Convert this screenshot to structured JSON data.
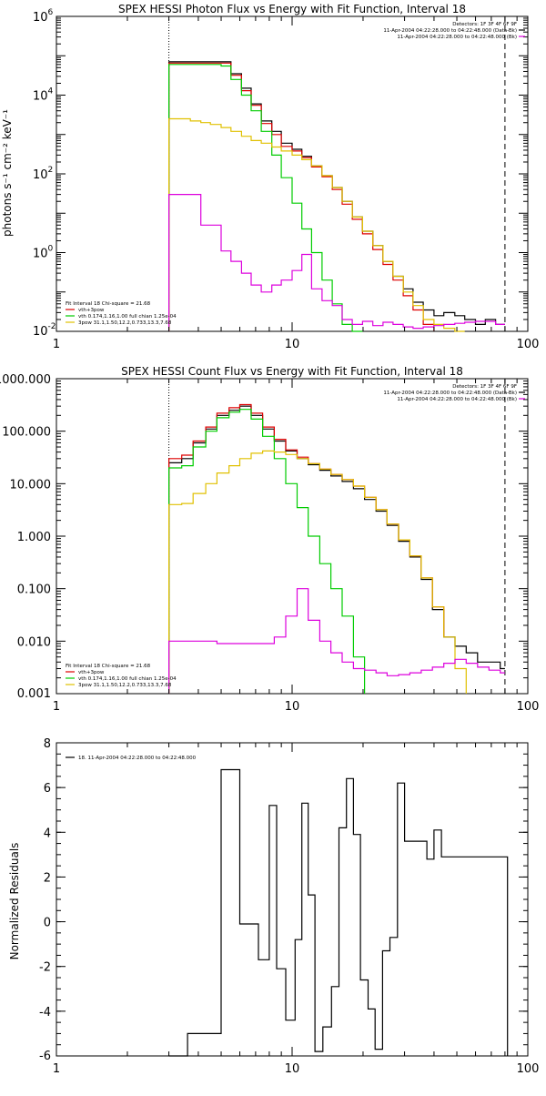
{
  "chart_data": [
    {
      "type": "line",
      "title": "SPEX HESSI Photon Flux vs Energy with Fit Function, Interval 18",
      "xlabel": "",
      "ylabel": "photons s⁻¹ cm⁻² keV⁻¹",
      "xscale": "log",
      "yscale": "log",
      "xlim": [
        1,
        100
      ],
      "ylim": [
        0.01,
        1000000
      ],
      "x_ticks": [
        {
          "v": 1,
          "t": "1"
        },
        {
          "v": 10,
          "t": "10"
        },
        {
          "v": 100,
          "t": "100"
        }
      ],
      "y_ticks": [
        {
          "v": 0.01,
          "base": "10",
          "exp": "-2"
        },
        {
          "v": 1,
          "base": "10",
          "exp": "0"
        },
        {
          "v": 100,
          "base": "10",
          "exp": "2"
        },
        {
          "v": 10000,
          "base": "10",
          "exp": "4"
        },
        {
          "v": 1000000,
          "base": "10",
          "exp": "6"
        }
      ],
      "dotted_x": 3,
      "dashed_x": 80,
      "legend_right": [
        {
          "text": "Detectors: 1F 3F 4F 6F 9F",
          "color": ""
        },
        {
          "text": "11-Apr-2004 04:22:28.000 to 04:22:48.000 (Data-Bk)",
          "color": "#000000"
        },
        {
          "text": "11-Apr-2004 04:22:28.000 to 04:22:48.000 (Bk)",
          "color": "#dd00dd"
        }
      ],
      "legend_left": [
        {
          "text": "Fit Interval 18   Chi-square = 21.68",
          "color": ""
        },
        {
          "text": "vth+3pow",
          "color": "#dd0000"
        },
        {
          "text": "vth 0.174,1.16,1.00  full chian 1.25e-04",
          "color": "#00cc00"
        },
        {
          "text": "3pow 31.1,1.50,12.2,0.733,13.3,7.68",
          "color": "#e0c000"
        }
      ],
      "series": [
        {
          "color": "#000000",
          "x": [
            3,
            3.3,
            3.7,
            4.1,
            4.5,
            5.0,
            5.5,
            6.1,
            6.7,
            7.4,
            8.2,
            9.0,
            10.0,
            11.0,
            12.1,
            13.4,
            14.8,
            16.3,
            18.0,
            19.9,
            22.0,
            24.3,
            26.8,
            29.6,
            32.6,
            36.0,
            40.0,
            44.0,
            49.0,
            54.0,
            60.0,
            66.0,
            73.0,
            80.0
          ],
          "y": [
            70000,
            70000,
            70000,
            70000,
            70000,
            70000,
            35000,
            15000,
            6000,
            2200,
            1200,
            600,
            420,
            280,
            160,
            90,
            45,
            20,
            8,
            3.5,
            1.5,
            0.6,
            0.25,
            0.12,
            0.055,
            0.035,
            0.025,
            0.03,
            0.025,
            0.02,
            0.015,
            0.02,
            0.015,
            0.015
          ]
        },
        {
          "color": "#dd0000",
          "x": [
            3,
            3.3,
            3.7,
            4.1,
            4.5,
            5.0,
            5.5,
            6.1,
            6.7,
            7.4,
            8.2,
            9.0,
            10.0,
            11.0,
            12.1,
            13.4,
            14.8,
            16.3,
            18.0,
            19.9,
            22.0,
            24.3,
            26.8,
            29.6,
            32.6,
            36.0,
            40.0
          ],
          "y": [
            65000,
            65000,
            65000,
            65000,
            65000,
            65000,
            32000,
            13000,
            5500,
            1900,
            1000,
            500,
            380,
            260,
            150,
            85,
            40,
            17,
            7,
            3,
            1.2,
            0.5,
            0.2,
            0.08,
            0.035,
            0.015,
            0.01
          ]
        },
        {
          "color": "#00cc00",
          "x": [
            3,
            3.3,
            3.7,
            4.1,
            4.5,
            5.0,
            5.5,
            6.1,
            6.7,
            7.4,
            8.2,
            9.0,
            10.0,
            11.0,
            12.1,
            13.4,
            14.8,
            16.3,
            18.0,
            19.9
          ],
          "y": [
            60000,
            60000,
            60000,
            60000,
            60000,
            55000,
            25000,
            10000,
            4000,
            1200,
            300,
            80,
            18,
            4,
            1,
            0.2,
            0.05,
            0.015,
            0.01,
            0.01
          ]
        },
        {
          "color": "#e0c000",
          "x": [
            3,
            3.3,
            3.7,
            4.1,
            4.5,
            5.0,
            5.5,
            6.1,
            6.7,
            7.4,
            8.2,
            9.0,
            10.0,
            11.0,
            12.1,
            13.4,
            14.8,
            16.3,
            18.0,
            19.9,
            22.0,
            24.3,
            26.8,
            29.6,
            32.6,
            36.0,
            40.0,
            44.0,
            49.0,
            54.0
          ],
          "y": [
            2500,
            2500,
            2200,
            2000,
            1800,
            1500,
            1200,
            900,
            700,
            600,
            480,
            380,
            300,
            230,
            160,
            90,
            45,
            20,
            8,
            3.5,
            1.5,
            0.6,
            0.25,
            0.1,
            0.045,
            0.02,
            0.015,
            0.012,
            0.01,
            0.01
          ]
        },
        {
          "color": "#dd00dd",
          "x": [
            3,
            3.3,
            3.7,
            4.1,
            4.5,
            5.0,
            5.5,
            6.1,
            6.7,
            7.4,
            8.2,
            9.0,
            10.0,
            11.0,
            12.1,
            13.4,
            14.8,
            16.3,
            18.0,
            19.9,
            22.0,
            24.3,
            26.8,
            29.6,
            32.6,
            36.0,
            40.0,
            44.0,
            49.0,
            54.0,
            60.0,
            66.0,
            73.0,
            80.0
          ],
          "y": [
            30,
            30,
            30,
            5,
            5,
            1.1,
            0.6,
            0.3,
            0.15,
            0.1,
            0.15,
            0.2,
            0.35,
            0.9,
            0.12,
            0.06,
            0.045,
            0.02,
            0.015,
            0.018,
            0.014,
            0.017,
            0.015,
            0.013,
            0.012,
            0.013,
            0.014,
            0.015,
            0.016,
            0.017,
            0.018,
            0.018,
            0.015,
            0.015
          ]
        }
      ]
    },
    {
      "type": "line",
      "title": "SPEX HESSI Count Flux vs Energy with Fit Function, Interval 18",
      "xlabel": "",
      "ylabel": "",
      "xscale": "log",
      "yscale": "log",
      "xlim": [
        1,
        100
      ],
      "ylim": [
        0.001,
        1000
      ],
      "x_ticks": [
        {
          "v": 1,
          "t": "1"
        },
        {
          "v": 10,
          "t": "10"
        },
        {
          "v": 100,
          "t": "100"
        }
      ],
      "y_ticks": [
        {
          "v": 0.001,
          "t": "0.001"
        },
        {
          "v": 0.01,
          "t": "0.010"
        },
        {
          "v": 0.1,
          "t": "0.100"
        },
        {
          "v": 1,
          "t": "1.000"
        },
        {
          "v": 10,
          "t": "10.000"
        },
        {
          "v": 100,
          "t": "100.000"
        },
        {
          "v": 1000,
          "t": "1000.000"
        }
      ],
      "dotted_x": 3,
      "dashed_x": 80,
      "legend_right": [
        {
          "text": "Detectors: 1F 3F 4F 6F 9F",
          "color": ""
        },
        {
          "text": "11-Apr-2004 04:22:28.000 to 04:22:48.000 (Data-Bk)",
          "color": "#000000"
        },
        {
          "text": "11-Apr-2004 04:22:28.000 to 04:22:48.000 (Bk)",
          "color": "#dd00dd"
        }
      ],
      "legend_left": [
        {
          "text": "Fit Interval 18   Chi-square = 21.68",
          "color": ""
        },
        {
          "text": "vth+3pow",
          "color": "#dd0000"
        },
        {
          "text": "vth 0.174,1.16,1.00  full chian 1.25e-04",
          "color": "#00cc00"
        },
        {
          "text": "3pow 31.1,1.50,12.2,0.733,13.3,7.68",
          "color": "#e0c000"
        }
      ],
      "series": [
        {
          "color": "#000000",
          "x": [
            3,
            3.4,
            3.8,
            4.3,
            4.8,
            5.4,
            6.0,
            6.7,
            7.5,
            8.4,
            9.4,
            10.5,
            11.7,
            13.1,
            14.6,
            16.3,
            18.2,
            20.3,
            22.7,
            25.3,
            28.3,
            31.6,
            35.3,
            39.4,
            44.0,
            49.1,
            54.8,
            61.2,
            68.4,
            76.4,
            80.0
          ],
          "y": [
            25,
            30,
            60,
            110,
            200,
            250,
            300,
            200,
            110,
            65,
            42,
            30,
            23,
            18,
            14,
            11,
            8,
            5,
            3,
            1.6,
            0.8,
            0.4,
            0.15,
            0.04,
            0.012,
            0.008,
            0.006,
            0.004,
            0.004,
            0.003,
            0.003
          ]
        },
        {
          "color": "#dd0000",
          "x": [
            3,
            3.4,
            3.8,
            4.3,
            4.8,
            5.4,
            6.0,
            6.7,
            7.5,
            8.4,
            9.4,
            10.5,
            11.7,
            13.1,
            14.6,
            16.3,
            18.2,
            20.3,
            22.7,
            25.3,
            28.3,
            31.6,
            35.3,
            39.4,
            44.0
          ],
          "y": [
            30,
            35,
            65,
            120,
            220,
            280,
            320,
            220,
            120,
            70,
            44,
            32,
            24,
            19,
            15,
            12,
            9,
            5.5,
            3.2,
            1.7,
            0.85,
            0.42,
            0.16,
            0.045,
            0.012
          ]
        },
        {
          "color": "#00cc00",
          "x": [
            3,
            3.4,
            3.8,
            4.3,
            4.8,
            5.4,
            6.0,
            6.7,
            7.5,
            8.4,
            9.4,
            10.5,
            11.7,
            13.1,
            14.6,
            16.3,
            18.2,
            20.3
          ],
          "y": [
            20,
            22,
            50,
            100,
            180,
            230,
            260,
            170,
            80,
            30,
            10,
            3.5,
            1,
            0.3,
            0.1,
            0.03,
            0.005,
            0.001
          ]
        },
        {
          "color": "#e0c000",
          "x": [
            3,
            3.4,
            3.8,
            4.3,
            4.8,
            5.4,
            6.0,
            6.7,
            7.5,
            8.4,
            9.4,
            10.5,
            11.7,
            13.1,
            14.6,
            16.3,
            18.2,
            20.3,
            22.7,
            25.3,
            28.3,
            31.6,
            35.3,
            39.4,
            44.0,
            49.1,
            54.8
          ],
          "y": [
            4,
            4.2,
            6.5,
            10,
            16,
            22,
            30,
            38,
            42,
            40,
            36,
            30,
            24,
            19,
            15,
            12,
            9,
            5.5,
            3.2,
            1.7,
            0.85,
            0.42,
            0.16,
            0.045,
            0.012,
            0.003,
            0.001
          ]
        },
        {
          "color": "#dd00dd",
          "x": [
            3,
            3.4,
            3.8,
            4.3,
            4.8,
            5.4,
            6.0,
            6.7,
            7.5,
            8.4,
            9.4,
            10.5,
            11.7,
            13.1,
            14.6,
            16.3,
            18.2,
            20.3,
            22.7,
            25.3,
            28.3,
            31.6,
            35.3,
            39.4,
            44.0,
            49.1,
            54.8,
            61.2,
            68.4,
            76.4,
            80.0
          ],
          "y": [
            0.01,
            0.01,
            0.01,
            0.01,
            0.009,
            0.009,
            0.009,
            0.009,
            0.009,
            0.012,
            0.03,
            0.1,
            0.025,
            0.01,
            0.006,
            0.004,
            0.003,
            0.0028,
            0.0025,
            0.0022,
            0.0023,
            0.0025,
            0.0028,
            0.0032,
            0.0038,
            0.0045,
            0.0038,
            0.0032,
            0.0028,
            0.0025,
            0.0025
          ]
        }
      ]
    },
    {
      "type": "line",
      "title": "",
      "xlabel": "",
      "ylabel": "Normalized Residuals",
      "xscale": "log",
      "yscale": "linear",
      "xlim": [
        1,
        100
      ],
      "ylim": [
        -6,
        8
      ],
      "x_ticks": [
        {
          "v": 1,
          "t": "1"
        },
        {
          "v": 10,
          "t": "10"
        },
        {
          "v": 100,
          "t": "100"
        }
      ],
      "y_ticks": [
        {
          "v": -6,
          "t": "-6"
        },
        {
          "v": -4,
          "t": "-4"
        },
        {
          "v": -2,
          "t": "-2"
        },
        {
          "v": 0,
          "t": "0"
        },
        {
          "v": 2,
          "t": "2"
        },
        {
          "v": 4,
          "t": "4"
        },
        {
          "v": 6,
          "t": "6"
        },
        {
          "v": 8,
          "t": "8"
        }
      ],
      "legend_left": [
        {
          "text": "18. 11-Apr-2004 04:22:28.000 to 04:22:48.000",
          "color": "#000000"
        }
      ],
      "series": [
        {
          "color": "#000000",
          "x": [
            3.0,
            3.6,
            4.3,
            5.0,
            5.5,
            6.0,
            6.7,
            7.2,
            8.0,
            8.6,
            9.4,
            10.3,
            11.0,
            11.7,
            12.5,
            13.5,
            14.7,
            15.8,
            17.0,
            18.2,
            19.5,
            21.0,
            22.5,
            24.2,
            26.0,
            28.0,
            30.0,
            32.3,
            34.6,
            37.3,
            40.0,
            43.0,
            46.3,
            50.0,
            53.7,
            57.7,
            62.0,
            66.7,
            71.7,
            77.0,
            82.0
          ],
          "y": [
            -6,
            -5,
            -5,
            6.8,
            6.8,
            -0.1,
            -0.1,
            -1.7,
            5.2,
            -2.1,
            -4.4,
            -0.8,
            5.3,
            1.2,
            -5.8,
            -4.7,
            -2.9,
            4.2,
            6.4,
            3.9,
            -2.6,
            -3.9,
            -5.7,
            -1.3,
            -0.7,
            6.2,
            3.6,
            3.6,
            3.6,
            2.8,
            4.1,
            2.9,
            2.9,
            2.9,
            2.9,
            2.9,
            2.9,
            2.9,
            2.9,
            2.9,
            -6
          ]
        }
      ]
    }
  ]
}
